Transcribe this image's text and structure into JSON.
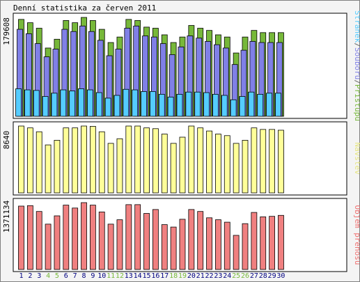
{
  "chart_data": {
    "type": "bar",
    "title": "Denní statistika za červen 2011",
    "categories": [
      "1",
      "2",
      "3",
      "4",
      "5",
      "6",
      "7",
      "8",
      "9",
      "10",
      "11",
      "12",
      "13",
      "14",
      "15",
      "16",
      "17",
      "18",
      "19",
      "20",
      "21",
      "22",
      "23",
      "24",
      "25",
      "26",
      "27",
      "28",
      "29",
      "30"
    ],
    "weekend_days": [
      "4",
      "5",
      "11",
      "12",
      "18",
      "19",
      "25",
      "26"
    ],
    "panels": [
      {
        "max_label": "179608",
        "ymax": 179608,
        "side_label_parts": [
          {
            "text": "Stránek",
            "color": "#55ccff"
          },
          {
            "text": "/",
            "color": "#666666"
          },
          {
            "text": "Souborů",
            "color": "#8080e6"
          },
          {
            "text": "/",
            "color": "#666666"
          },
          {
            "text": "Přístupů",
            "color": "#77b83a"
          }
        ],
        "series": [
          {
            "name": "Přístupů",
            "color": "#77b83a",
            "values": [
              176000,
              170000,
              160000,
              124000,
              140000,
              174000,
              170000,
              179608,
              174000,
              158000,
              134000,
              144000,
              176000,
              174000,
              162000,
              160000,
              148000,
              134000,
              144000,
              165000,
              160000,
              156000,
              148000,
              144000,
              115000,
              144000,
              156000,
              152000,
              152000,
              152000
            ]
          },
          {
            "name": "Souborů",
            "color": "#8080e6",
            "values": [
              158000,
              150000,
              132000,
              108000,
              122000,
              158000,
              154000,
              164000,
              154000,
              138000,
              110000,
              122000,
              160000,
              164000,
              146000,
              144000,
              132000,
              112000,
              126000,
              146000,
              142000,
              136000,
              130000,
              124000,
              94000,
              120000,
              136000,
              134000,
              134000,
              134000
            ]
          },
          {
            "name": "Stránek",
            "color": "#55ccff",
            "values": [
              50000,
              48000,
              47000,
              36000,
              42000,
              48000,
              46000,
              50000,
              48000,
              43000,
              33000,
              38000,
              49000,
              48000,
              45000,
              45000,
              40000,
              35000,
              40000,
              44000,
              44000,
              43000,
              40000,
              38000,
              30000,
              36000,
              44000,
              40000,
              42000,
              42000
            ]
          }
        ]
      },
      {
        "max_label": "8640",
        "ymax": 8640,
        "side_label_parts": [
          {
            "text": "Návštěv",
            "color": "#e6e680"
          }
        ],
        "series": [
          {
            "name": "Návštěv",
            "color": "#ffff99",
            "values": [
              8640,
              8400,
              7900,
              6200,
              6800,
              8400,
              8400,
              8640,
              8600,
              7900,
              6400,
              7000,
              8640,
              8640,
              8400,
              8300,
              7600,
              6400,
              7200,
              8640,
              8400,
              8000,
              7600,
              7400,
              6400,
              6800,
              8400,
              8200,
              8200,
              8100
            ]
          }
        ]
      },
      {
        "max_label": "1371134",
        "ymax": 1371134,
        "side_label_parts": [
          {
            "text": "Objem přenosu",
            "color": "#f07070"
          }
        ],
        "series": [
          {
            "name": "Objem přenosu",
            "color": "#f08080",
            "values": [
              1300000,
              1310000,
              1190000,
              930000,
              1100000,
              1320000,
              1260000,
              1371134,
              1320000,
              1180000,
              930000,
              1020000,
              1330000,
              1330000,
              1150000,
              1230000,
              920000,
              870000,
              1030000,
              1230000,
              1190000,
              1060000,
              1020000,
              970000,
              700000,
              940000,
              1170000,
              1080000,
              1090000,
              1110000
            ]
          }
        ]
      }
    ],
    "colors": {
      "background": "#f4f4f4",
      "plot_background": "#ffffff",
      "weekday_label": "#000080",
      "weekend_label": "#77b83a"
    }
  }
}
